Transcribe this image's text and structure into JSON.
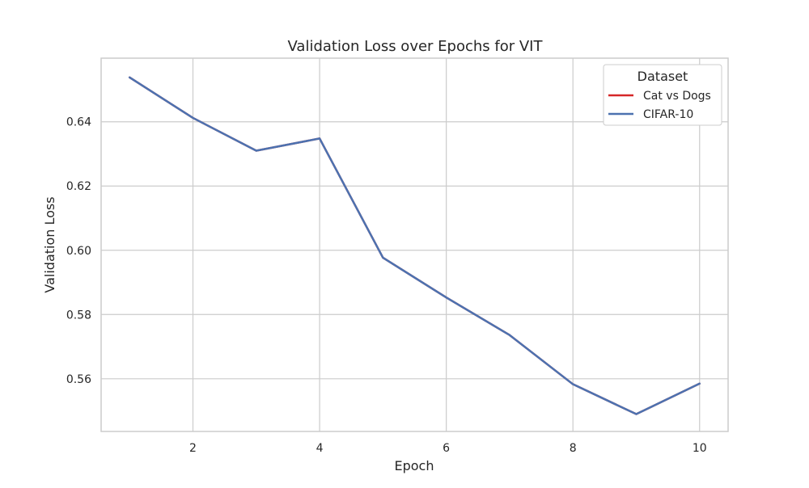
{
  "chart_data": {
    "type": "line",
    "title": "Validation Loss over Epochs for VIT",
    "xlabel": "Epoch",
    "ylabel": "Validation Loss",
    "xlim": [
      0.55,
      10.45
    ],
    "ylim": [
      0.5436,
      0.6598
    ],
    "x_ticks": [
      2,
      4,
      6,
      8,
      10
    ],
    "y_ticks": [
      0.56,
      0.58,
      0.6,
      0.62,
      0.64
    ],
    "x_tick_labels": [
      "2",
      "4",
      "6",
      "8",
      "10"
    ],
    "y_tick_labels": [
      "0.56",
      "0.58",
      "0.60",
      "0.62",
      "0.64"
    ],
    "grid": true,
    "legend": {
      "title": "Dataset",
      "placement": "top-right"
    },
    "x": [
      1,
      2,
      3,
      4,
      5,
      6,
      7,
      8,
      9,
      10
    ],
    "series": [
      {
        "name": "Cat vs Dogs",
        "color": "#d62728",
        "values": [
          0.6538,
          0.6412,
          0.631,
          0.6348,
          0.5977,
          0.5853,
          0.5736,
          0.5583,
          0.549,
          0.5585
        ]
      },
      {
        "name": "CIFAR-10",
        "color": "#4c72b0",
        "values": [
          0.6538,
          0.6412,
          0.631,
          0.6348,
          0.5977,
          0.5853,
          0.5736,
          0.5583,
          0.549,
          0.5585
        ]
      }
    ]
  }
}
